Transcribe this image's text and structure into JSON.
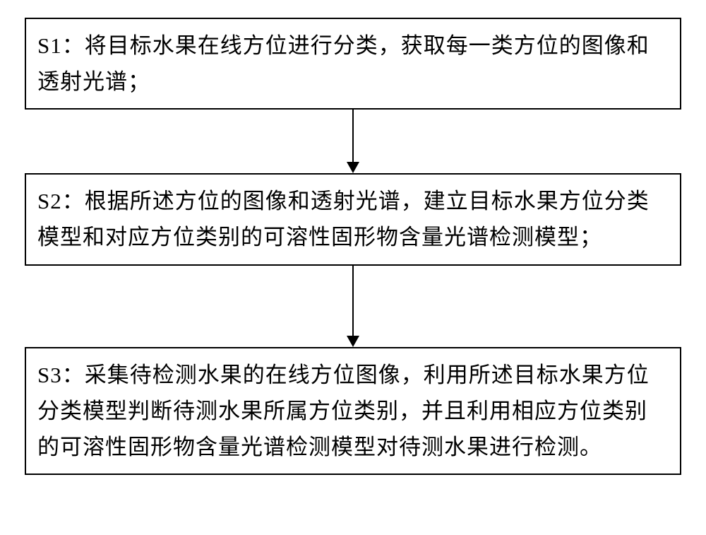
{
  "flowchart": {
    "type": "flowchart",
    "background_color": "#ffffff",
    "border_color": "#000000",
    "border_width": 2,
    "text_color": "#000000",
    "font_size": 31,
    "font_family": "KaiTi",
    "box_width_ratio": 1.0,
    "line_height": 1.65,
    "steps": [
      {
        "label": "S1：",
        "text": "将目标水果在线方位进行分类，获取每一类方位的图像和透射光谱；"
      },
      {
        "label": "S2：",
        "text": "根据所述方位的图像和透射光谱，建立目标水果方位分类模型和对应方位类别的可溶性固形物含量光谱检测模型；"
      },
      {
        "label": "S3：",
        "text": "采集待检测水果的在线方位图像，利用所述目标水果方位分类模型判断待测水果所属方位类别，并且利用相应方位类别的可溶性固形物含量光谱检测模型对待测水果进行检测。"
      }
    ],
    "arrows": [
      {
        "height": 90,
        "line_width": 2,
        "head_width": 18,
        "head_height": 16,
        "color": "#000000"
      },
      {
        "height": 115,
        "line_width": 2,
        "head_width": 18,
        "head_height": 16,
        "color": "#000000"
      }
    ]
  }
}
